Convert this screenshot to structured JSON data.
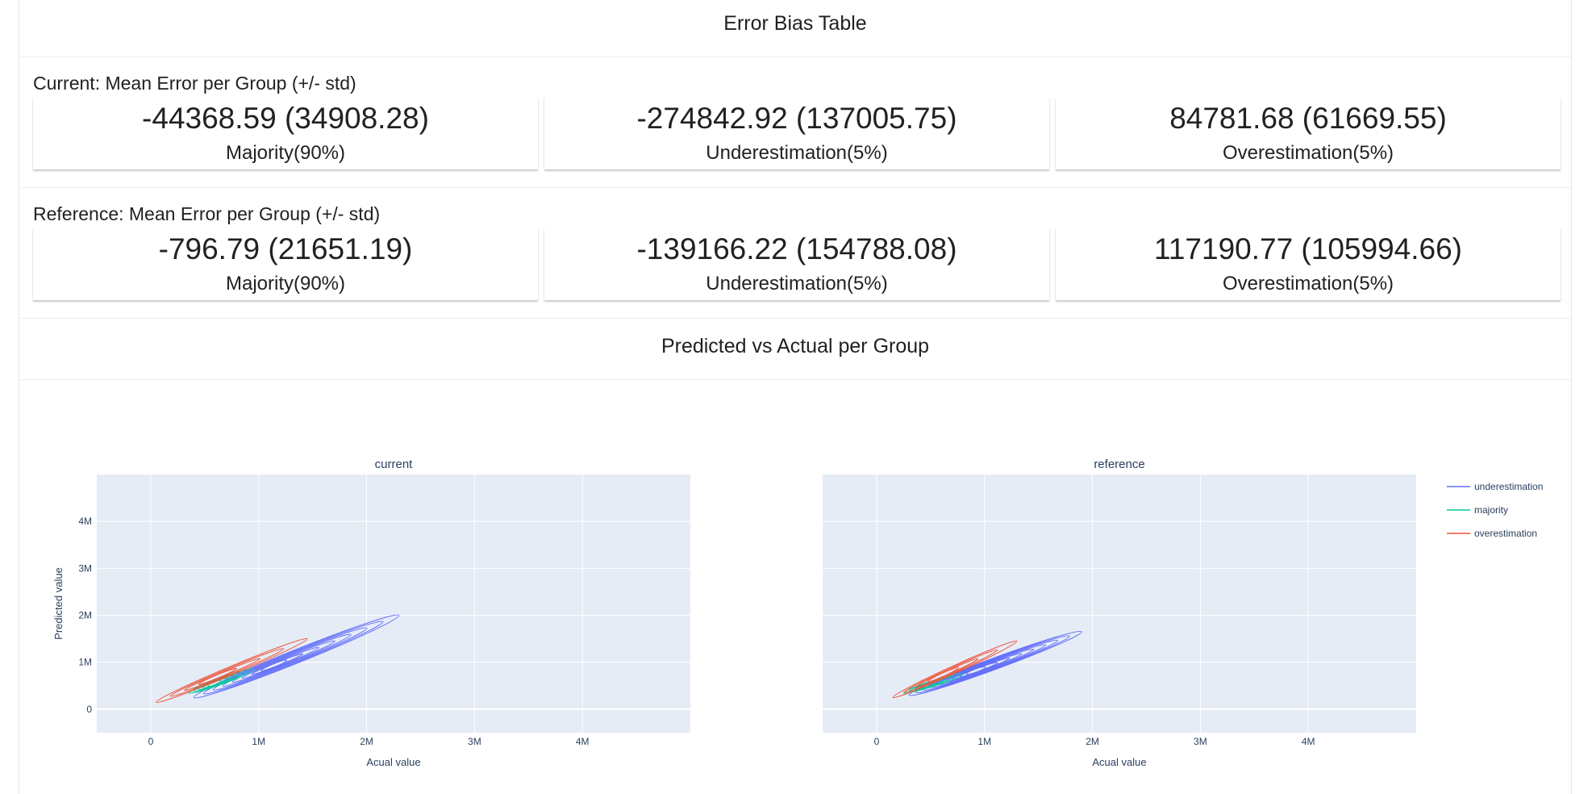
{
  "header": {
    "title": "Error Bias Table"
  },
  "current": {
    "label": "Current: Mean Error per Group (+/- std)",
    "cards": [
      {
        "value": "-44368.59 (34908.28)",
        "group": "Majority(90%)"
      },
      {
        "value": "-274842.92 (137005.75)",
        "group": "Underestimation(5%)"
      },
      {
        "value": "84781.68 (61669.55)",
        "group": "Overestimation(5%)"
      }
    ]
  },
  "reference": {
    "label": "Reference: Mean Error per Group (+/- std)",
    "cards": [
      {
        "value": "-796.79 (21651.19)",
        "group": "Majority(90%)"
      },
      {
        "value": "-139166.22 (154788.08)",
        "group": "Underestimation(5%)"
      },
      {
        "value": "117190.77 (105994.66)",
        "group": "Overestimation(5%)"
      }
    ]
  },
  "plot_section": {
    "title": "Predicted vs Actual per Group"
  },
  "chart_data": {
    "type": "contour",
    "subplots": [
      {
        "title": "current",
        "xlabel": "Acual value",
        "ylabel": "Predicted value"
      },
      {
        "title": "reference",
        "xlabel": "Acual value",
        "ylabel": ""
      }
    ],
    "xlim": [
      -500000,
      5000000
    ],
    "ylim": [
      -500000,
      5000000
    ],
    "xticks": [
      0,
      1000000,
      2000000,
      3000000,
      4000000
    ],
    "xtick_labels": [
      "0",
      "1M",
      "2M",
      "3M",
      "4M"
    ],
    "yticks": [
      0,
      1000000,
      2000000,
      3000000,
      4000000
    ],
    "ytick_labels": [
      "0",
      "1M",
      "2M",
      "3M",
      "4M"
    ],
    "grid": true,
    "legend_position": "top-right",
    "series": [
      {
        "name": "underestimation",
        "color": "#636efa",
        "current": {
          "from": [
            400000,
            250000
          ],
          "to": [
            2300000,
            2000000
          ],
          "width": 140000,
          "levels": 8
        },
        "reference": {
          "from": [
            300000,
            300000
          ],
          "to": [
            1900000,
            1650000
          ],
          "width": 120000,
          "levels": 9
        }
      },
      {
        "name": "majority",
        "color": "#00cc96",
        "current": {
          "from": [
            350000,
            350000
          ],
          "to": [
            950000,
            850000
          ],
          "width": 70000,
          "levels": 5
        },
        "reference": {
          "from": [
            250000,
            350000
          ],
          "to": [
            800000,
            750000
          ],
          "width": 60000,
          "levels": 4
        }
      },
      {
        "name": "overestimation",
        "color": "#ef553b",
        "current": {
          "from": [
            50000,
            150000
          ],
          "to": [
            1450000,
            1500000
          ],
          "width": 90000,
          "levels": 4
        },
        "reference": {
          "from": [
            150000,
            250000
          ],
          "to": [
            1300000,
            1450000
          ],
          "width": 80000,
          "levels": 4
        }
      }
    ]
  }
}
